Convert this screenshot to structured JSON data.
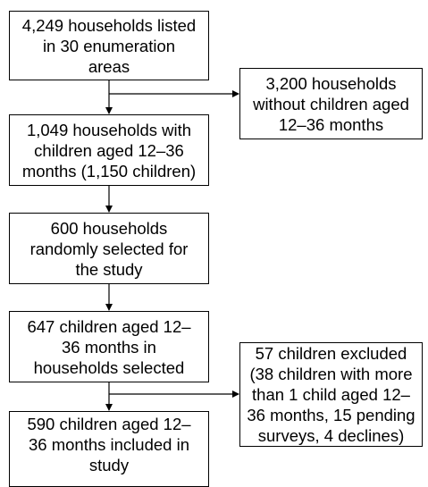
{
  "flowchart": {
    "boxes": {
      "listed": "4,249 households listed\nin 30 enumeration\nareas",
      "without_children": "3,200 households\nwithout children aged\n12–36 months",
      "with_children": "1,049 households with\nchildren aged 12–36\nmonths (1,150 children)",
      "selected": "600 households\nrandomly selected for\nthe study",
      "children_in_selected": "647 children aged 12–\n36 months in\nhouseholds selected",
      "excluded": "57 children excluded\n(38 children with more\nthan 1 child aged 12–\n36 months, 15 pending\nsurveys, 4 declines)",
      "included": "590 children aged 12–\n36 months included in\nstudy"
    }
  }
}
